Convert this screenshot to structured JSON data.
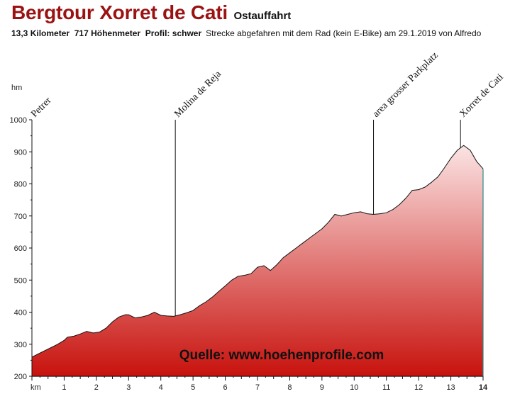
{
  "header": {
    "title": "Bergtour Xorret de Cati",
    "subtitle_inline": "Ostauffahrt",
    "distance": "13,3 Kilometer",
    "elevation_gain": "717 Höhenmeter",
    "profile": "Profil: schwer",
    "description": "Strecke abgefahren mit dem Rad (kein E-Bike) am 29.1.2019 von Alfredo"
  },
  "source": "Quelle: www.hoehenprofile.com",
  "chart_data": {
    "type": "area",
    "xlabel": "km",
    "ylabel": "hm",
    "xlim": [
      0,
      14
    ],
    "ylim": [
      200,
      1000
    ],
    "x_ticks": [
      1,
      2,
      3,
      4,
      5,
      6,
      7,
      8,
      9,
      10,
      11,
      12,
      13,
      14
    ],
    "x_tick_labels": [
      "1",
      "2",
      "3",
      "4",
      "5",
      "6",
      "7",
      "8",
      "9",
      "10",
      "11",
      "12",
      "13",
      "14"
    ],
    "y_ticks": [
      200,
      300,
      400,
      500,
      600,
      700,
      800,
      900,
      1000
    ],
    "y_tick_labels": [
      "200",
      "300",
      "400",
      "500",
      "600",
      "700",
      "800",
      "900",
      "1000"
    ],
    "fill_colors": {
      "top": "#fbe4e4",
      "bottom": "#c8120d"
    },
    "x": [
      0,
      0.3,
      0.6,
      0.8,
      1.0,
      1.1,
      1.3,
      1.5,
      1.7,
      1.9,
      2.1,
      2.3,
      2.5,
      2.7,
      2.9,
      3.0,
      3.2,
      3.4,
      3.6,
      3.8,
      4.0,
      4.2,
      4.4,
      4.6,
      4.8,
      5.0,
      5.2,
      5.4,
      5.6,
      5.8,
      6.0,
      6.2,
      6.4,
      6.6,
      6.8,
      7.0,
      7.2,
      7.4,
      7.6,
      7.8,
      8.0,
      8.2,
      8.4,
      8.6,
      8.8,
      9.0,
      9.2,
      9.4,
      9.6,
      9.8,
      10.0,
      10.2,
      10.4,
      10.6,
      10.8,
      11.0,
      11.2,
      11.4,
      11.6,
      11.8,
      12.0,
      12.2,
      12.4,
      12.6,
      12.8,
      13.0,
      13.2,
      13.4,
      13.6,
      13.8,
      14.0
    ],
    "y": [
      260,
      275,
      290,
      300,
      312,
      322,
      325,
      332,
      340,
      335,
      338,
      350,
      370,
      385,
      392,
      392,
      382,
      385,
      390,
      400,
      390,
      388,
      387,
      392,
      398,
      405,
      420,
      432,
      447,
      465,
      482,
      500,
      512,
      515,
      520,
      540,
      545,
      530,
      548,
      570,
      585,
      600,
      615,
      630,
      645,
      660,
      680,
      705,
      700,
      705,
      710,
      713,
      707,
      705,
      707,
      710,
      720,
      735,
      755,
      780,
      782,
      790,
      805,
      822,
      850,
      880,
      905,
      920,
      905,
      870,
      847
    ],
    "waypoints": [
      {
        "label": "Petrer",
        "km": 0
      },
      {
        "label": "Molina de Reja",
        "km": 4.45
      },
      {
        "label": "area grosser Parkplatz",
        "km": 10.6
      },
      {
        "label": "Xorret de Cati",
        "km": 13.3
      }
    ]
  }
}
